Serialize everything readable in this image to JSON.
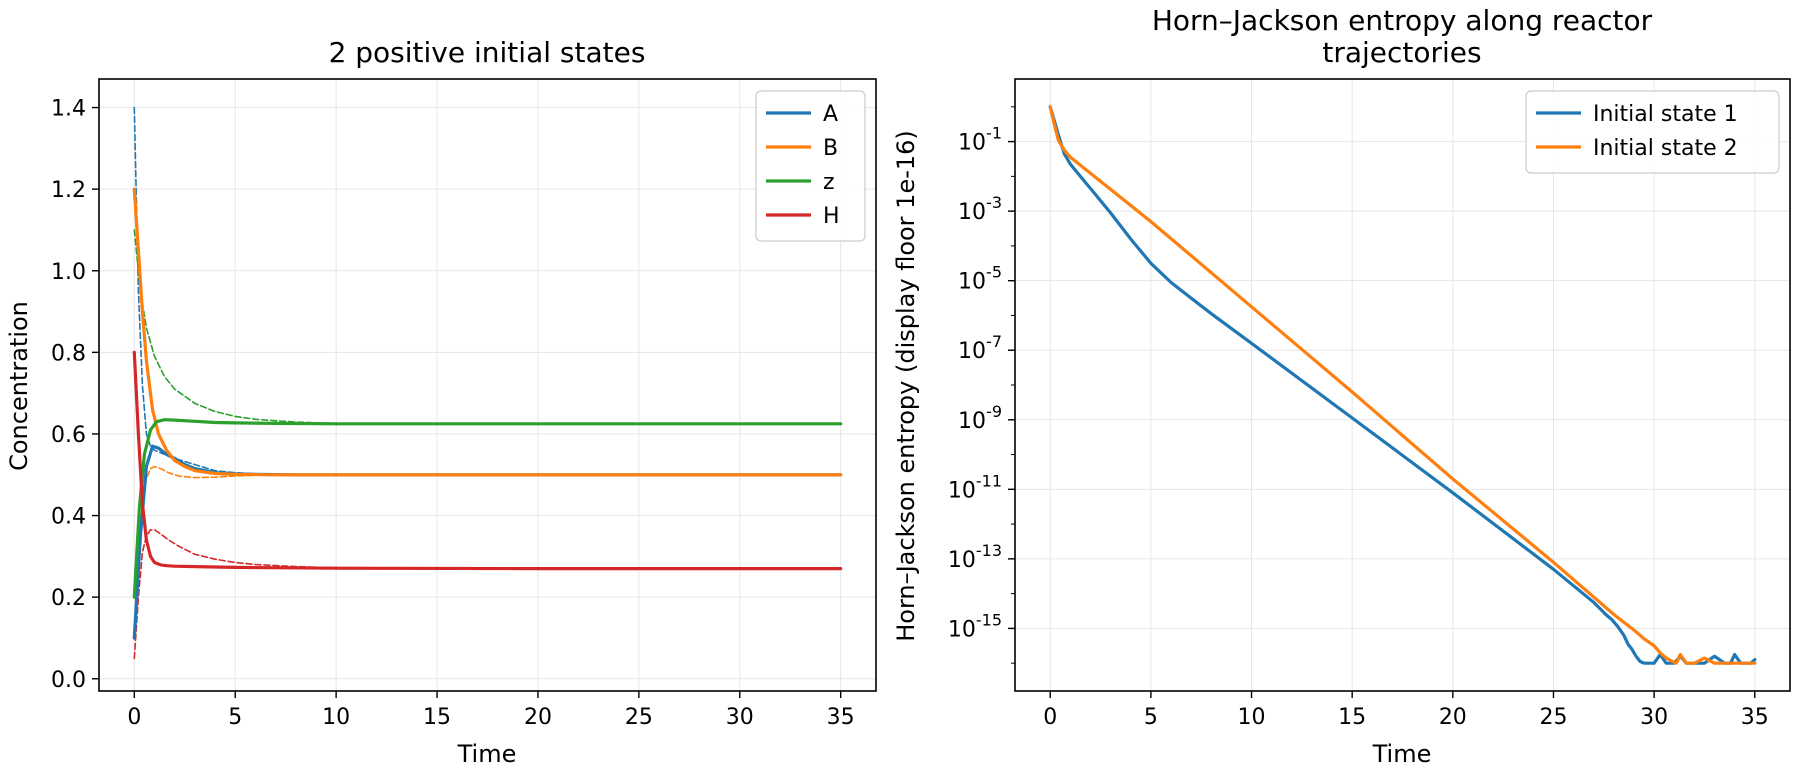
{
  "chart_data": [
    {
      "type": "line",
      "title": "2 positive initial states",
      "xlabel": "Time",
      "ylabel": "Concentration",
      "xlim": [
        -1.75,
        36.75
      ],
      "ylim": [
        -0.03,
        1.47
      ],
      "xticks": [
        0,
        5,
        10,
        15,
        20,
        25,
        30,
        35
      ],
      "yticks": [
        0.0,
        0.2,
        0.4,
        0.6,
        0.8,
        1.0,
        1.2,
        1.4
      ],
      "ytick_labels": [
        "0.0",
        "0.2",
        "0.4",
        "0.6",
        "0.8",
        "1.0",
        "1.2",
        "1.4"
      ],
      "grid": true,
      "legend_position": "upper right",
      "legend": [
        "A",
        "B",
        "z",
        "H"
      ],
      "series": [
        {
          "name": "A",
          "color": "#1f77b4",
          "style": "solid",
          "x": [
            0,
            0.3,
            0.6,
            0.9,
            1.2,
            1.6,
            2.0,
            2.5,
            3,
            4,
            5,
            6,
            8,
            10,
            15,
            20,
            35
          ],
          "y": [
            0.1,
            0.35,
            0.52,
            0.57,
            0.565,
            0.55,
            0.54,
            0.525,
            0.515,
            0.505,
            0.502,
            0.501,
            0.5,
            0.5,
            0.5,
            0.5,
            0.5
          ]
        },
        {
          "name": "B",
          "color": "#ff7f0e",
          "style": "solid",
          "x": [
            0,
            0.2,
            0.4,
            0.6,
            0.9,
            1.2,
            1.6,
            2.0,
            2.5,
            3,
            4,
            5,
            7,
            10,
            20,
            35
          ],
          "y": [
            1.2,
            1.05,
            0.9,
            0.78,
            0.66,
            0.6,
            0.56,
            0.535,
            0.52,
            0.51,
            0.503,
            0.501,
            0.5,
            0.5,
            0.5,
            0.5
          ]
        },
        {
          "name": "z",
          "color": "#2ca02c",
          "style": "solid",
          "x": [
            0,
            0.25,
            0.5,
            0.8,
            1.1,
            1.5,
            2.0,
            3,
            4,
            5,
            7,
            10,
            20,
            35
          ],
          "y": [
            0.2,
            0.42,
            0.55,
            0.61,
            0.63,
            0.635,
            0.634,
            0.631,
            0.628,
            0.627,
            0.626,
            0.625,
            0.625,
            0.625
          ]
        },
        {
          "name": "H",
          "color": "#d62728",
          "style": "solid",
          "x": [
            0,
            0.2,
            0.4,
            0.6,
            0.8,
            1.0,
            1.3,
            1.6,
            2.0,
            3,
            5,
            10,
            20,
            35
          ],
          "y": [
            0.8,
            0.6,
            0.43,
            0.34,
            0.3,
            0.285,
            0.279,
            0.277,
            0.276,
            0.275,
            0.273,
            0.271,
            0.27,
            0.27
          ]
        },
        {
          "name": "A (initial state 2)",
          "color": "#1f77b4",
          "style": "dashed",
          "x": [
            0,
            0.2,
            0.4,
            0.6,
            0.8,
            1.0,
            1.5,
            2.0,
            3,
            4,
            5,
            6,
            8,
            10,
            35
          ],
          "y": [
            1.4,
            0.95,
            0.72,
            0.6,
            0.57,
            0.56,
            0.55,
            0.54,
            0.525,
            0.51,
            0.505,
            0.502,
            0.5,
            0.5,
            0.5
          ]
        },
        {
          "name": "B (initial state 2)",
          "color": "#ff7f0e",
          "style": "dashed",
          "x": [
            0,
            0.2,
            0.4,
            0.6,
            0.8,
            1.0,
            1.3,
            1.7,
            2.2,
            3,
            4,
            5,
            6,
            8,
            10,
            35
          ],
          "y": [
            0.1,
            0.3,
            0.43,
            0.49,
            0.515,
            0.52,
            0.515,
            0.505,
            0.497,
            0.493,
            0.494,
            0.497,
            0.499,
            0.5,
            0.5,
            0.5
          ]
        },
        {
          "name": "z (initial state 2)",
          "color": "#2ca02c",
          "style": "dashed",
          "x": [
            0,
            0.3,
            0.6,
            1.0,
            1.5,
            2.0,
            3,
            4,
            5,
            6,
            8,
            10,
            15,
            35
          ],
          "y": [
            1.1,
            0.95,
            0.86,
            0.79,
            0.74,
            0.71,
            0.675,
            0.655,
            0.643,
            0.636,
            0.629,
            0.626,
            0.625,
            0.625
          ]
        },
        {
          "name": "H (initial state 2)",
          "color": "#d62728",
          "style": "dashed",
          "x": [
            0,
            0.2,
            0.4,
            0.6,
            0.8,
            1.0,
            1.3,
            1.7,
            2.2,
            3,
            4,
            5,
            6,
            8,
            10,
            35
          ],
          "y": [
            0.05,
            0.2,
            0.31,
            0.35,
            0.365,
            0.365,
            0.355,
            0.34,
            0.325,
            0.305,
            0.293,
            0.285,
            0.28,
            0.275,
            0.272,
            0.27
          ]
        }
      ]
    },
    {
      "type": "line",
      "title": "Horn–Jackson entropy along reactor trajectories",
      "title_lines": [
        "Horn–Jackson entropy along reactor",
        "trajectories"
      ],
      "xlabel": "Time",
      "ylabel": "Horn–Jackson entropy (display floor 1e-16)",
      "yscale": "log",
      "xlim": [
        -1.75,
        36.75
      ],
      "ylog_range": [
        -16.8,
        0.8
      ],
      "xticks": [
        0,
        5,
        10,
        15,
        20,
        25,
        30,
        35
      ],
      "yticks_log": [
        -1,
        -3,
        -5,
        -7,
        -9,
        -11,
        -13,
        -15
      ],
      "grid": true,
      "legend_position": "upper right",
      "legend": [
        "Initial state 1",
        "Initial state 2"
      ],
      "series": [
        {
          "name": "Initial state 1",
          "color": "#1f77b4",
          "log10_y": true,
          "x": [
            0,
            0.2,
            0.4,
            0.7,
            1.0,
            1.5,
            2.0,
            3,
            4,
            5,
            6,
            7,
            8,
            10,
            15,
            20,
            25,
            27,
            27.6,
            27.9,
            28.2,
            28.5,
            28.7,
            28.9,
            29.1,
            29.3,
            29.5,
            30.0,
            30.3,
            30.6,
            31.0,
            31.3,
            31.6,
            32.0,
            32.5,
            33.0,
            33.5,
            33.8,
            34.0,
            34.3,
            34.8,
            35.0
          ],
          "y": [
            0.0,
            -0.4,
            -0.8,
            -1.35,
            -1.65,
            -2.0,
            -2.35,
            -3.05,
            -3.8,
            -4.5,
            -5.05,
            -5.5,
            -5.95,
            -6.8,
            -8.95,
            -11.1,
            -13.3,
            -14.25,
            -14.6,
            -14.75,
            -14.95,
            -15.2,
            -15.45,
            -15.6,
            -15.8,
            -15.95,
            -16.0,
            -16.0,
            -15.75,
            -16.0,
            -16.0,
            -15.8,
            -16.0,
            -16.0,
            -16.0,
            -15.8,
            -16.0,
            -16.0,
            -15.75,
            -16.0,
            -16.0,
            -15.9
          ]
        },
        {
          "name": "Initial state 2",
          "color": "#ff7f0e",
          "log10_y": true,
          "x": [
            0,
            0.2,
            0.4,
            0.7,
            1.0,
            5,
            10,
            15,
            20,
            25,
            28,
            29,
            29.5,
            30.0,
            30.3,
            30.6,
            30.9,
            31.1,
            31.3,
            31.6,
            32.0,
            32.5,
            33.0,
            33.5,
            34.0,
            34.5,
            35.0
          ],
          "y": [
            0.0,
            -0.5,
            -0.95,
            -1.25,
            -1.45,
            -3.3,
            -5.75,
            -8.2,
            -10.7,
            -13.1,
            -14.6,
            -15.05,
            -15.3,
            -15.5,
            -15.7,
            -15.85,
            -15.95,
            -16.0,
            -15.75,
            -16.0,
            -16.0,
            -15.85,
            -16.0,
            -16.0,
            -16.0,
            -16.0,
            -16.0
          ]
        }
      ]
    }
  ]
}
